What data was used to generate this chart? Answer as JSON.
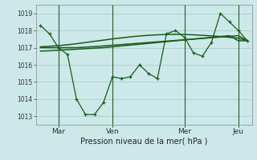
{
  "title": "",
  "xlabel": "Pression niveau de la mer( hPa )",
  "bg_color": "#cce8e8",
  "grid_color": "#aacece",
  "line_color": "#1a5c1a",
  "ylim": [
    1012.5,
    1019.5
  ],
  "yticks": [
    1013,
    1014,
    1015,
    1016,
    1017,
    1018,
    1019
  ],
  "x_tick_labels": [
    "Mar",
    "Ven",
    "Mer",
    "Jeu"
  ],
  "x_tick_positions": [
    2,
    8,
    16,
    22
  ],
  "vlines": [
    2,
    8,
    16,
    22
  ],
  "main_series": [
    1018.3,
    1017.8,
    1017.0,
    1016.6,
    1014.0,
    1013.1,
    1013.1,
    1013.8,
    1015.3,
    1015.2,
    1015.3,
    1016.0,
    1015.5,
    1015.2,
    1017.8,
    1018.0,
    1017.6,
    1016.7,
    1016.5,
    1017.3,
    1019.0,
    1018.5,
    1018.0,
    1017.4
  ],
  "smooth_lines": [
    [
      1017.0,
      1017.0,
      1017.0,
      1017.0,
      1017.0,
      1017.03,
      1017.06,
      1017.1,
      1017.14,
      1017.18,
      1017.22,
      1017.26,
      1017.3,
      1017.34,
      1017.38,
      1017.42,
      1017.46,
      1017.5,
      1017.54,
      1017.58,
      1017.62,
      1017.66,
      1017.7,
      1017.4
    ],
    [
      1016.8,
      1016.82,
      1016.85,
      1016.88,
      1016.91,
      1016.94,
      1016.97,
      1017.0,
      1017.05,
      1017.1,
      1017.15,
      1017.2,
      1017.25,
      1017.3,
      1017.35,
      1017.4,
      1017.45,
      1017.5,
      1017.55,
      1017.6,
      1017.65,
      1017.7,
      1017.4,
      1017.4
    ],
    [
      1017.05,
      1017.08,
      1017.12,
      1017.17,
      1017.23,
      1017.3,
      1017.37,
      1017.44,
      1017.51,
      1017.57,
      1017.63,
      1017.68,
      1017.72,
      1017.75,
      1017.77,
      1017.78,
      1017.77,
      1017.75,
      1017.72,
      1017.69,
      1017.65,
      1017.6,
      1017.55,
      1017.4
    ]
  ]
}
